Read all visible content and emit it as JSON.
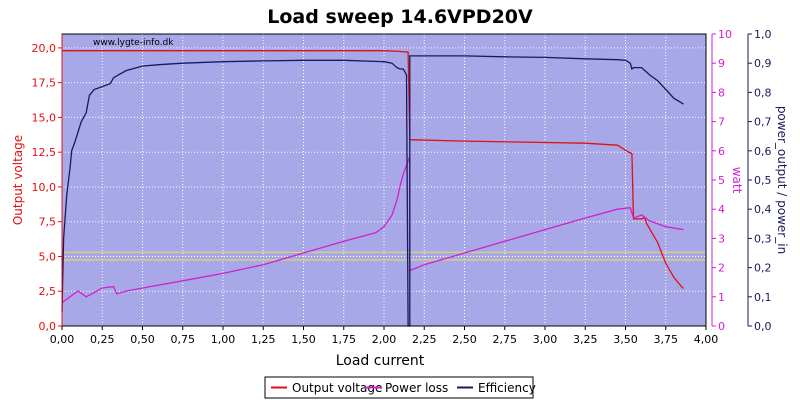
{
  "chart_data": {
    "type": "line",
    "title": "Load sweep 14.6VPD20V",
    "watermark": "www.lygte-info.dk",
    "xlabel": "Load current",
    "xlim": [
      0,
      4.0
    ],
    "x_ticks": [
      "0,00",
      "0,25",
      "0,50",
      "0,75",
      "1,00",
      "1,25",
      "1,50",
      "1,75",
      "2,00",
      "2,25",
      "2,50",
      "2,75",
      "3,00",
      "3,25",
      "3,50",
      "3,75",
      "4,00"
    ],
    "axes": {
      "left": {
        "label": "Output voltage",
        "ylim": [
          0,
          21
        ],
        "ticks": [
          "0,0",
          "2,5",
          "5,0",
          "7,5",
          "10,0",
          "12,5",
          "15,0",
          "17,5",
          "20,0"
        ],
        "color": "#e01010"
      },
      "right1": {
        "label": "watt",
        "ylim": [
          0,
          10
        ],
        "ticks": [
          "0",
          "1",
          "2",
          "3",
          "4",
          "5",
          "6",
          "7",
          "8",
          "9",
          "10"
        ],
        "color": "#d020d0"
      },
      "right2": {
        "label": "power_output / power_in",
        "ylim": [
          0,
          1.0
        ],
        "ticks": [
          "0,0",
          "0,1",
          "0,2",
          "0,3",
          "0,4",
          "0,5",
          "0,6",
          "0,7",
          "0,8",
          "0,9",
          "1,0"
        ],
        "color": "#1a1a5a"
      }
    },
    "grid": true,
    "legend_position": "bottom",
    "plot_background": "#a8a8e8",
    "series": [
      {
        "name": "Output voltage",
        "axis": "left",
        "color": "#e01010",
        "points": [
          [
            0.0,
            19.8
          ],
          [
            0.5,
            19.8
          ],
          [
            1.0,
            19.8
          ],
          [
            1.5,
            19.8
          ],
          [
            2.0,
            19.8
          ],
          [
            2.09,
            19.75
          ],
          [
            2.15,
            19.7
          ],
          [
            2.16,
            13.5
          ],
          [
            2.16,
            13.4
          ],
          [
            2.5,
            13.3
          ],
          [
            3.0,
            13.2
          ],
          [
            3.25,
            13.15
          ],
          [
            3.45,
            13.0
          ],
          [
            3.52,
            12.5
          ],
          [
            3.54,
            12.4
          ],
          [
            3.55,
            7.7
          ],
          [
            3.6,
            7.7
          ],
          [
            3.62,
            7.8
          ],
          [
            3.63,
            7.4
          ],
          [
            3.65,
            7.0
          ],
          [
            3.7,
            6.0
          ],
          [
            3.75,
            4.5
          ],
          [
            3.8,
            3.5
          ],
          [
            3.85,
            2.8
          ],
          [
            3.86,
            2.7
          ]
        ]
      },
      {
        "name": "Power loss",
        "axis": "right1",
        "color": "#d020d0",
        "points": [
          [
            0.0,
            0.8
          ],
          [
            0.05,
            1.0
          ],
          [
            0.1,
            1.2
          ],
          [
            0.15,
            1.0
          ],
          [
            0.25,
            1.3
          ],
          [
            0.32,
            1.35
          ],
          [
            0.34,
            1.1
          ],
          [
            0.4,
            1.2
          ],
          [
            0.6,
            1.4
          ],
          [
            0.8,
            1.6
          ],
          [
            1.0,
            1.8
          ],
          [
            1.25,
            2.1
          ],
          [
            1.5,
            2.5
          ],
          [
            1.75,
            2.9
          ],
          [
            1.95,
            3.2
          ],
          [
            2.0,
            3.4
          ],
          [
            2.05,
            3.8
          ],
          [
            2.08,
            4.3
          ],
          [
            2.1,
            4.8
          ],
          [
            2.12,
            5.2
          ],
          [
            2.14,
            5.5
          ],
          [
            2.16,
            5.8
          ],
          [
            2.16,
            1.9
          ],
          [
            2.25,
            2.1
          ],
          [
            2.5,
            2.5
          ],
          [
            2.75,
            2.9
          ],
          [
            3.0,
            3.3
          ],
          [
            3.25,
            3.7
          ],
          [
            3.45,
            4.0
          ],
          [
            3.53,
            4.05
          ],
          [
            3.55,
            3.7
          ],
          [
            3.6,
            3.8
          ],
          [
            3.65,
            3.6
          ],
          [
            3.75,
            3.4
          ],
          [
            3.86,
            3.3
          ]
        ]
      },
      {
        "name": "Efficiency",
        "axis": "right2",
        "color": "#1a1a5a",
        "points": [
          [
            0.0,
            0.05
          ],
          [
            0.01,
            0.3
          ],
          [
            0.03,
            0.45
          ],
          [
            0.05,
            0.54
          ],
          [
            0.06,
            0.6
          ],
          [
            0.08,
            0.63
          ],
          [
            0.12,
            0.7
          ],
          [
            0.15,
            0.73
          ],
          [
            0.17,
            0.79
          ],
          [
            0.2,
            0.81
          ],
          [
            0.25,
            0.82
          ],
          [
            0.3,
            0.83
          ],
          [
            0.32,
            0.85
          ],
          [
            0.35,
            0.86
          ],
          [
            0.4,
            0.875
          ],
          [
            0.5,
            0.89
          ],
          [
            0.6,
            0.895
          ],
          [
            0.75,
            0.9
          ],
          [
            1.0,
            0.905
          ],
          [
            1.25,
            0.908
          ],
          [
            1.5,
            0.91
          ],
          [
            1.75,
            0.91
          ],
          [
            2.0,
            0.905
          ],
          [
            2.05,
            0.9
          ],
          [
            2.08,
            0.885
          ],
          [
            2.1,
            0.88
          ],
          [
            2.12,
            0.88
          ],
          [
            2.14,
            0.86
          ],
          [
            2.15,
            0.0
          ],
          [
            2.16,
            0.0
          ],
          [
            2.16,
            0.925
          ],
          [
            2.5,
            0.925
          ],
          [
            2.75,
            0.922
          ],
          [
            3.0,
            0.92
          ],
          [
            3.25,
            0.915
          ],
          [
            3.45,
            0.912
          ],
          [
            3.5,
            0.91
          ],
          [
            3.53,
            0.9
          ],
          [
            3.54,
            0.88
          ],
          [
            3.55,
            0.885
          ],
          [
            3.6,
            0.885
          ],
          [
            3.65,
            0.86
          ],
          [
            3.7,
            0.84
          ],
          [
            3.75,
            0.81
          ],
          [
            3.8,
            0.78
          ],
          [
            3.86,
            0.76
          ]
        ]
      }
    ],
    "reference_lines": [
      {
        "axis": "left",
        "value": 5.3,
        "color": "#dddd66"
      },
      {
        "axis": "left",
        "value": 4.75,
        "color": "#dddd66"
      }
    ]
  }
}
